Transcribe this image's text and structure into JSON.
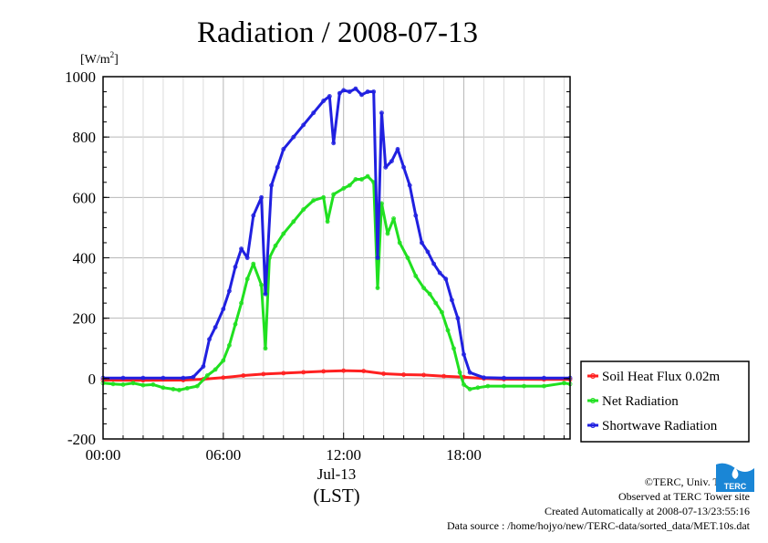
{
  "chart_data": {
    "type": "line",
    "title": "Radiation / 2008-07-13",
    "ylabel_unit": "[W/m",
    "ylabel_sup": "2",
    "ylabel_close": "]",
    "xlabel_date": "Jul-13",
    "xlabel": "(LST)",
    "xlim": [
      0,
      23.3
    ],
    "ylim": [
      -200,
      1000
    ],
    "x_ticks": [
      {
        "value": 0,
        "label": "00:00"
      },
      {
        "value": 6,
        "label": "06:00"
      },
      {
        "value": 12,
        "label": "12:00"
      },
      {
        "value": 18,
        "label": "18:00"
      }
    ],
    "y_ticks": [
      -200,
      0,
      200,
      400,
      600,
      800,
      1000
    ],
    "grid": true,
    "legend_position": "bottom-right outside",
    "series": [
      {
        "name": "Soil Heat Flux 0.02m",
        "color": "#ff2020",
        "x": [
          0,
          2,
          4,
          5,
          6,
          7,
          8,
          9,
          10,
          11,
          12,
          13,
          14,
          15,
          16,
          17,
          18,
          19,
          20,
          22,
          23.3
        ],
        "y": [
          -5,
          -6,
          -5,
          -2,
          3,
          10,
          15,
          18,
          21,
          24,
          26,
          25,
          16,
          13,
          12,
          8,
          5,
          0,
          -2,
          -3,
          -3
        ]
      },
      {
        "name": "Net Radiation",
        "color": "#20e020",
        "x": [
          0,
          0.5,
          1,
          1.5,
          2,
          2.5,
          3,
          3.5,
          3.8,
          4.2,
          4.7,
          5.2,
          5.6,
          6.0,
          6.3,
          6.6,
          6.9,
          7.2,
          7.5,
          7.9,
          8.1,
          8.3,
          8.6,
          9.0,
          9.5,
          10.0,
          10.5,
          11.0,
          11.2,
          11.5,
          12.0,
          12.3,
          12.6,
          12.9,
          13.2,
          13.5,
          13.7,
          13.9,
          14.2,
          14.5,
          14.8,
          15.2,
          15.6,
          16.0,
          16.3,
          16.6,
          16.9,
          17.2,
          17.5,
          17.8,
          18.0,
          18.3,
          18.7,
          19.2,
          20,
          21,
          22,
          23,
          23.3
        ],
        "y": [
          -15,
          -18,
          -20,
          -15,
          -22,
          -20,
          -30,
          -35,
          -38,
          -32,
          -25,
          10,
          30,
          60,
          110,
          180,
          250,
          330,
          380,
          310,
          100,
          400,
          440,
          480,
          520,
          560,
          590,
          600,
          520,
          610,
          630,
          640,
          660,
          660,
          670,
          650,
          300,
          580,
          480,
          530,
          450,
          400,
          340,
          300,
          280,
          250,
          220,
          160,
          100,
          20,
          -20,
          -35,
          -30,
          -25,
          -25,
          -25,
          -25,
          -15,
          -18
        ]
      },
      {
        "name": "Shortwave Radiation",
        "color": "#2020e0",
        "x": [
          0,
          1,
          2,
          3,
          4,
          4.5,
          5.0,
          5.3,
          5.6,
          6.0,
          6.3,
          6.6,
          6.9,
          7.2,
          7.5,
          7.9,
          8.1,
          8.4,
          8.7,
          9.0,
          9.5,
          10.0,
          10.5,
          11.0,
          11.3,
          11.5,
          11.8,
          12.0,
          12.3,
          12.6,
          12.9,
          13.2,
          13.5,
          13.7,
          13.9,
          14.1,
          14.4,
          14.7,
          15.0,
          15.3,
          15.6,
          15.9,
          16.2,
          16.5,
          16.8,
          17.1,
          17.4,
          17.7,
          18.0,
          18.3,
          19,
          20,
          22,
          23.3
        ],
        "y": [
          2,
          2,
          2,
          2,
          2,
          5,
          40,
          130,
          170,
          230,
          290,
          370,
          430,
          400,
          540,
          600,
          280,
          640,
          700,
          760,
          800,
          840,
          880,
          920,
          935,
          780,
          945,
          955,
          950,
          960,
          940,
          950,
          950,
          400,
          880,
          700,
          720,
          760,
          700,
          640,
          540,
          450,
          420,
          380,
          350,
          330,
          260,
          200,
          80,
          20,
          3,
          2,
          2,
          2
        ]
      }
    ]
  },
  "credits": {
    "line1": "©TERC, Univ. Tsukuba",
    "line2": "Observed at TERC Tower site",
    "line3": "Created Automatically at 2008-07-13/23:55:16",
    "line4": "Data source : /home/hojyo/new/TERC-data/sorted_data/MET.10s.dat"
  },
  "logo": {
    "text": "TERC",
    "color": "#1a86d6"
  }
}
